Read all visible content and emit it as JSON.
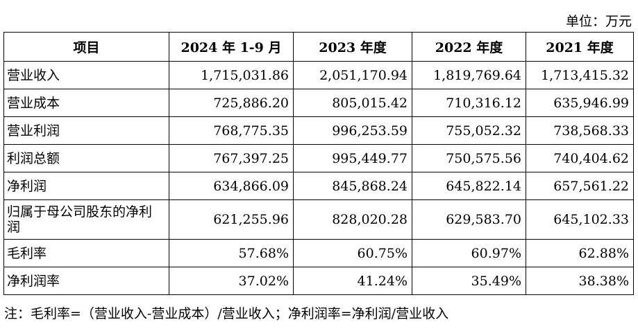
{
  "unit_label": "单位：万元",
  "table": {
    "headers": [
      "项目",
      "2024 年 1-9 月",
      "2023 年度",
      "2022 年度",
      "2021 年度"
    ],
    "rows": [
      {
        "label": "营业收入",
        "values": [
          "1,715,031.86",
          "2,051,170.94",
          "1,819,769.64",
          "1,713,415.32"
        ]
      },
      {
        "label": "营业成本",
        "values": [
          "725,886.20",
          "805,015.42",
          "710,316.12",
          "635,946.99"
        ]
      },
      {
        "label": "营业利润",
        "values": [
          "768,775.35",
          "996,253.59",
          "755,052.32",
          "738,568.33"
        ]
      },
      {
        "label": "利润总额",
        "values": [
          "767,397.25",
          "995,449.77",
          "750,575.56",
          "740,404.62"
        ]
      },
      {
        "label": "净利润",
        "values": [
          "634,866.09",
          "845,868.24",
          "645,822.14",
          "657,561.22"
        ]
      },
      {
        "label": "归属于母公司股东的净利润",
        "values": [
          "621,255.96",
          "828,020.28",
          "629,583.70",
          "645,102.33"
        ]
      },
      {
        "label": "毛利率",
        "values": [
          "57.68%",
          "60.75%",
          "60.97%",
          "62.88%"
        ]
      },
      {
        "label": "净利润率",
        "values": [
          "37.02%",
          "41.24%",
          "35.49%",
          "38.38%"
        ]
      }
    ]
  },
  "note": "注：毛利率=（营业收入-营业成本）/营业收入；净利润率=净利润/营业收入"
}
